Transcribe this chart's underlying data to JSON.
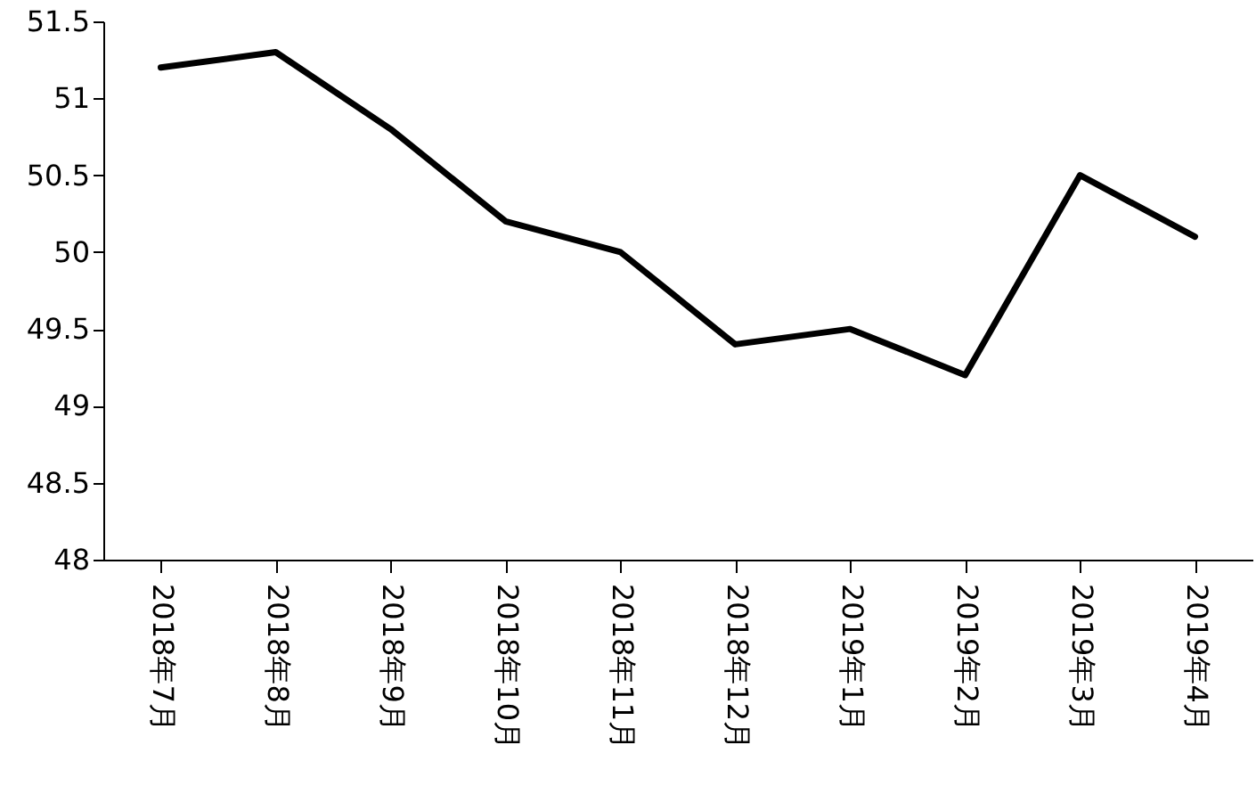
{
  "chart_data": {
    "type": "line",
    "categories": [
      "2018年7月",
      "2018年8月",
      "2018年9月",
      "2018年10月",
      "2018年11月",
      "2018年12月",
      "2019年1月",
      "2019年2月",
      "2019年3月",
      "2019年4月"
    ],
    "series": [
      {
        "color": "#000000",
        "values": [
          51.2,
          51.3,
          50.8,
          50.2,
          50.0,
          49.4,
          49.5,
          49.2,
          50.5,
          50.1
        ]
      }
    ],
    "ylim": [
      48,
      51.5
    ],
    "yticks": [
      48,
      48.5,
      49,
      49.5,
      50,
      50.5,
      51,
      51.5
    ],
    "grid": false,
    "marker": "none",
    "line_style": "solid"
  }
}
